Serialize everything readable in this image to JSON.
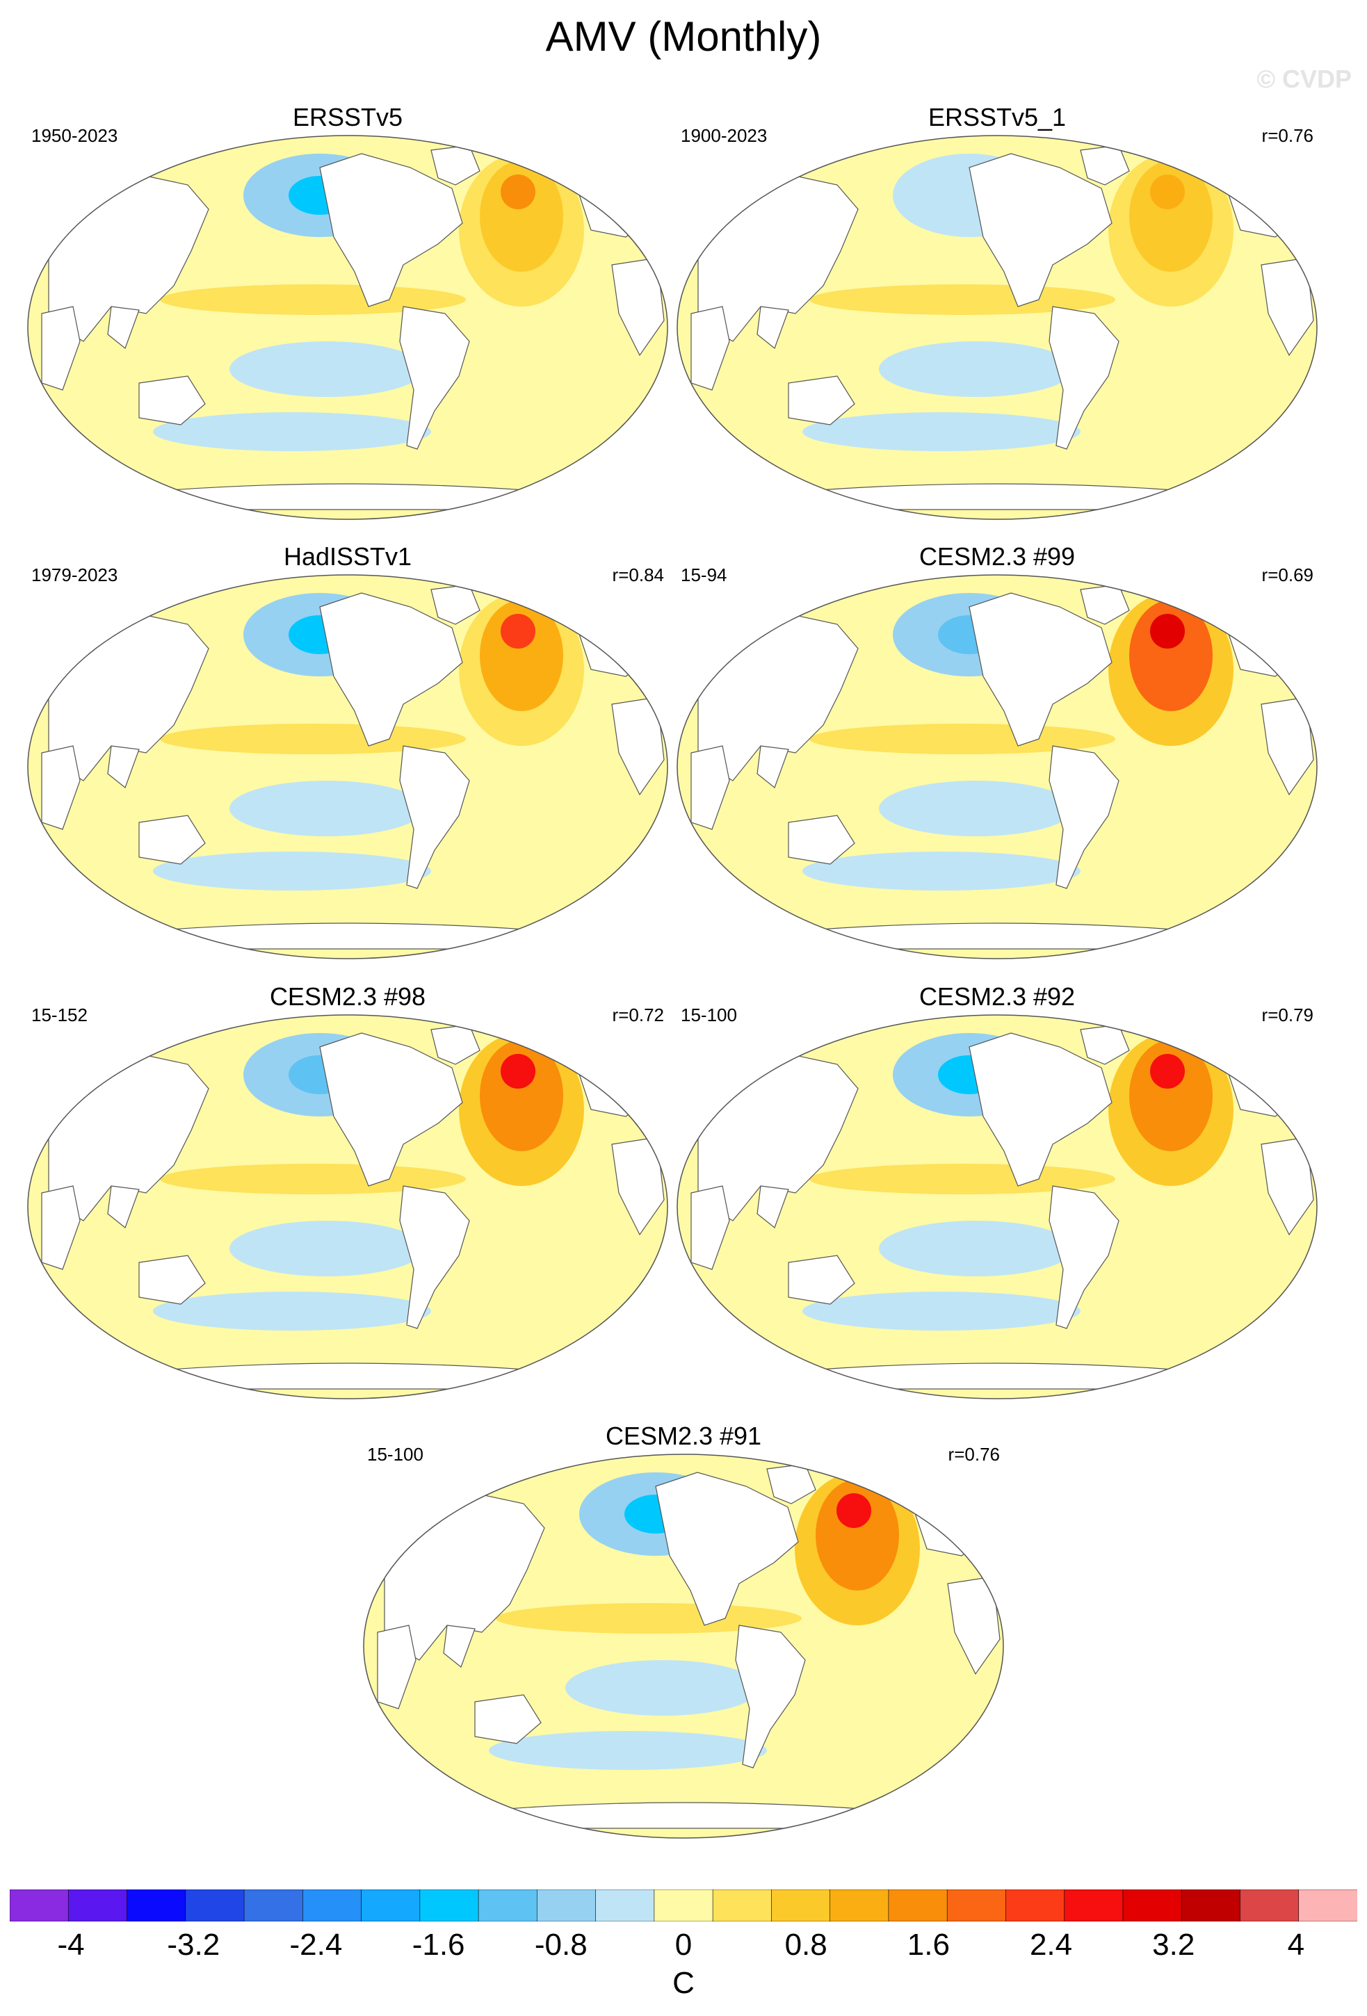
{
  "title": "AMV (Monthly)",
  "watermark": "© CVDP",
  "panels": [
    {
      "name": "ERSSTv5",
      "period": "1950-2023",
      "corr": "",
      "north_atlantic_peak": 1.9,
      "north_pacific_min": -1.5
    },
    {
      "name": "ERSSTv5_1",
      "period": "1900-2023",
      "corr": "r=0.76",
      "north_atlantic_peak": 1.4,
      "north_pacific_min": -0.3
    },
    {
      "name": "HadISSTv1",
      "period": "1979-2023",
      "corr": "r=0.84",
      "north_atlantic_peak": 2.6,
      "north_pacific_min": -1.4
    },
    {
      "name": "CESM2.3 #99",
      "period": "15-94",
      "corr": "r=0.69",
      "north_atlantic_peak": 3.4,
      "north_pacific_min": -1.2
    },
    {
      "name": "CESM2.3 #98",
      "period": "15-152",
      "corr": "r=0.72",
      "north_atlantic_peak": 2.9,
      "north_pacific_min": -0.9
    },
    {
      "name": "CESM2.3 #92",
      "period": "15-100",
      "corr": "r=0.79",
      "north_atlantic_peak": 2.9,
      "north_pacific_min": -1.3
    },
    {
      "name": "CESM2.3 #91",
      "period": "15-100",
      "corr": "r=0.76",
      "north_atlantic_peak": 2.8,
      "north_pacific_min": -1.6
    }
  ],
  "colorbar": {
    "units": "C",
    "min": -4.4,
    "max": 4.4,
    "step": 0.4,
    "tick_labels": [
      "-4",
      "-3.2",
      "-2.4",
      "-1.6",
      "-0.8",
      "0",
      "0.8",
      "1.6",
      "2.4",
      "3.2",
      "4"
    ],
    "colors": [
      "#8a2be2",
      "#5a17f0",
      "#0a0aff",
      "#2046e8",
      "#3470e6",
      "#2590f8",
      "#14a8ff",
      "#00c8ff",
      "#5ec2f2",
      "#96d1f2",
      "#bfe4f6",
      "#fffaa6",
      "#fde25a",
      "#fcc92a",
      "#fbae12",
      "#f98e0b",
      "#fa6614",
      "#fb3c16",
      "#f70e0e",
      "#e20000",
      "#c00000",
      "#dc4646",
      "#fcb4b4"
    ]
  }
}
